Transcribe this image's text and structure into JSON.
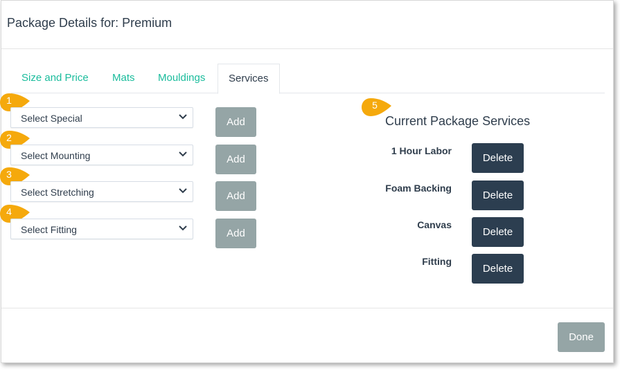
{
  "header": {
    "title": "Package Details for: Premium"
  },
  "tabs": [
    {
      "label": "Size and Price"
    },
    {
      "label": "Mats"
    },
    {
      "label": "Mouldings"
    },
    {
      "label": "Services",
      "active": true
    }
  ],
  "selects": [
    {
      "value": "Select Special",
      "add_label": "Add",
      "badge": "1"
    },
    {
      "value": "Select Mounting",
      "add_label": "Add",
      "badge": "2"
    },
    {
      "value": "Select Stretching",
      "add_label": "Add",
      "badge": "3"
    },
    {
      "value": "Select Fitting",
      "add_label": "Add",
      "badge": "4"
    }
  ],
  "services": {
    "badge": "5",
    "title": "Current Package Services",
    "items": [
      {
        "name": "1 Hour Labor",
        "delete_label": "Delete"
      },
      {
        "name": "Foam Backing",
        "delete_label": "Delete"
      },
      {
        "name": "Canvas",
        "delete_label": "Delete"
      },
      {
        "name": "Fitting",
        "delete_label": "Delete"
      }
    ]
  },
  "footer": {
    "done_label": "Done"
  },
  "colors": {
    "accent": "#1abc9c",
    "badge": "#f5a90c",
    "dark_button": "#2c3e50",
    "muted_button": "#95a5a6"
  }
}
